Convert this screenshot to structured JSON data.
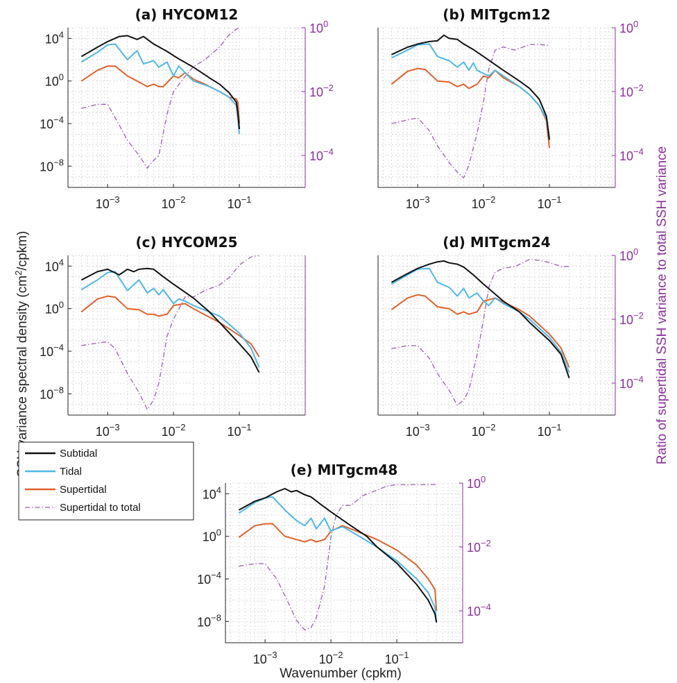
{
  "figure": {
    "ylabel": "SSH variance spectral density (cm",
    "ylabel_sup": "2",
    "ylabel_tail": "/cpkm)",
    "xlabel": "Wavenumber (cpkm)",
    "y2label": "Ratio of supertidal SSH variance to total SSH variance"
  },
  "legend": {
    "entries": [
      "Subtidal",
      "Tidal",
      "Supertidal",
      "Supertidal to total"
    ]
  },
  "colors": {
    "subtidal": "#111111",
    "tidal": "#4cb8e6",
    "supertidal": "#e0602a",
    "ratio": "#9a5bb0",
    "right_axis": "#8a2f9c"
  },
  "chart_data": [
    {
      "type": "line",
      "title": "(a) HYCOM12",
      "xscale": "log",
      "yscale": "log",
      "xlim": [
        0.00025,
        1
      ],
      "ylim": [
        1e-10,
        100000.0
      ],
      "y2lim": [
        1e-05,
        1
      ],
      "xticks": [
        "10^-3",
        "10^-2",
        "10^-1"
      ],
      "yticks": [
        "10^4",
        "10^0",
        "10^-4",
        "10^-8"
      ],
      "y2ticks": [
        "10^0",
        "10^-2",
        "10^-4"
      ],
      "series": [
        {
          "name": "Subtidal",
          "x": [
            0.0004,
            0.0007,
            0.001,
            0.0015,
            0.002,
            0.0028,
            0.0035,
            0.005,
            0.008,
            0.012,
            0.02,
            0.035,
            0.05,
            0.07,
            0.09,
            0.095,
            0.1
          ],
          "y": [
            200,
            1500,
            5000,
            15000,
            18000,
            8000,
            15000,
            3000,
            600,
            120,
            20,
            2,
            0.5,
            0.08,
            0.01,
            0.001,
            3e-05
          ]
        },
        {
          "name": "Tidal",
          "x": [
            0.0004,
            0.0007,
            0.001,
            0.0013,
            0.002,
            0.0028,
            0.0035,
            0.005,
            0.006,
            0.008,
            0.01,
            0.012,
            0.015,
            0.02,
            0.035,
            0.05,
            0.07,
            0.09,
            0.095,
            0.1
          ],
          "y": [
            60,
            500,
            2500,
            3000,
            100,
            700,
            40,
            80,
            20,
            60,
            3,
            25,
            6,
            1,
            0.3,
            0.1,
            0.03,
            0.005,
            0.0003,
            1e-05
          ]
        },
        {
          "name": "Supertidal",
          "x": [
            0.0004,
            0.0007,
            0.001,
            0.0013,
            0.002,
            0.003,
            0.004,
            0.005,
            0.006,
            0.007,
            0.01,
            0.012,
            0.015,
            0.02,
            0.03,
            0.05,
            0.07,
            0.09,
            0.095,
            0.1
          ],
          "y": [
            1,
            10,
            25,
            25,
            3,
            0.8,
            0.3,
            0.5,
            0.3,
            0.3,
            3,
            2,
            6,
            1.5,
            0.5,
            0.1,
            0.03,
            0.02,
            0.01,
            0.0001
          ]
        }
      ],
      "ratio": {
        "name": "Supertidal to total",
        "x": [
          0.0004,
          0.0007,
          0.001,
          0.0015,
          0.002,
          0.003,
          0.004,
          0.005,
          0.006,
          0.008,
          0.01,
          0.015,
          0.02,
          0.03,
          0.05,
          0.07,
          0.09,
          0.1
        ],
        "y": [
          0.003,
          0.004,
          0.004,
          0.0009,
          0.0003,
          0.0001,
          4e-05,
          7e-05,
          0.0001,
          0.002,
          0.01,
          0.03,
          0.06,
          0.1,
          0.25,
          0.6,
          0.9,
          1
        ]
      }
    },
    {
      "type": "line",
      "title": "(b) MITgcm12",
      "xscale": "log",
      "yscale": "log",
      "xlim": [
        0.00025,
        1
      ],
      "ylim": [
        1e-10,
        100000.0
      ],
      "y2lim": [
        1e-05,
        1
      ],
      "xticks": [
        "10^-3",
        "10^-2",
        "10^-1"
      ],
      "yticks": [],
      "y2ticks": [
        "10^0",
        "10^-2",
        "10^-4"
      ],
      "series": [
        {
          "name": "Subtidal",
          "x": [
            0.0004,
            0.0007,
            0.001,
            0.0015,
            0.002,
            0.0025,
            0.003,
            0.004,
            0.005,
            0.007,
            0.01,
            0.02,
            0.035,
            0.05,
            0.07,
            0.09,
            0.1
          ],
          "y": [
            300,
            1500,
            3000,
            5000,
            6000,
            20000,
            10000,
            8000,
            3000,
            900,
            200,
            10,
            1,
            0.2,
            0.02,
            0.0005,
            3e-06
          ]
        },
        {
          "name": "Tidal",
          "x": [
            0.0004,
            0.0007,
            0.001,
            0.0015,
            0.002,
            0.003,
            0.004,
            0.005,
            0.006,
            0.007,
            0.008,
            0.01,
            0.012,
            0.015,
            0.02,
            0.035,
            0.05,
            0.07,
            0.09,
            0.1
          ],
          "y": [
            150,
            800,
            2500,
            3000,
            200,
            80,
            20,
            60,
            10,
            50,
            10,
            5,
            3,
            10,
            3,
            0.3,
            0.05,
            0.005,
            0.0003,
            5e-06
          ]
        },
        {
          "name": "Supertidal",
          "x": [
            0.0004,
            0.0007,
            0.001,
            0.0013,
            0.002,
            0.003,
            0.004,
            0.005,
            0.006,
            0.008,
            0.01,
            0.012,
            0.015,
            0.02,
            0.035,
            0.05,
            0.07,
            0.09,
            0.1
          ],
          "y": [
            0.5,
            8,
            15,
            12,
            1,
            0.8,
            0.3,
            0.5,
            0.2,
            0.5,
            3,
            2,
            10,
            2,
            0.3,
            0.05,
            0.005,
            0.0002,
            5e-07
          ]
        }
      ],
      "ratio": {
        "name": "Supertidal to total",
        "x": [
          0.0004,
          0.0007,
          0.001,
          0.0015,
          0.002,
          0.003,
          0.004,
          0.005,
          0.006,
          0.008,
          0.01,
          0.012,
          0.015,
          0.02,
          0.03,
          0.05,
          0.07,
          0.1
        ],
        "y": [
          0.001,
          0.0013,
          0.0015,
          0.0006,
          0.0002,
          6e-05,
          3e-05,
          2e-05,
          5e-05,
          0.0005,
          0.005,
          0.05,
          0.2,
          0.25,
          0.2,
          0.3,
          0.3,
          0.28
        ]
      }
    },
    {
      "type": "line",
      "title": "(c) HYCOM25",
      "xscale": "log",
      "yscale": "log",
      "xlim": [
        0.00025,
        1
      ],
      "ylim": [
        1e-10,
        100000.0
      ],
      "y2lim": [
        1e-05,
        1
      ],
      "xticks": [
        "10^-3",
        "10^-2",
        "10^-1"
      ],
      "yticks": [
        "10^4",
        "10^0",
        "10^-4",
        "10^-8"
      ],
      "y2ticks": [],
      "series": [
        {
          "name": "Subtidal",
          "x": [
            0.0004,
            0.0007,
            0.001,
            0.0015,
            0.002,
            0.0025,
            0.003,
            0.004,
            0.005,
            0.007,
            0.01,
            0.02,
            0.035,
            0.05,
            0.1,
            0.15,
            0.2
          ],
          "y": [
            500,
            3000,
            5000,
            1500,
            5000,
            3000,
            5000,
            6000,
            5000,
            1000,
            200,
            10,
            0.5,
            0.05,
            0.0005,
            3e-05,
            1e-06
          ]
        },
        {
          "name": "Tidal",
          "x": [
            0.0004,
            0.0007,
            0.001,
            0.0013,
            0.002,
            0.003,
            0.004,
            0.005,
            0.006,
            0.007,
            0.01,
            0.012,
            0.015,
            0.02,
            0.05,
            0.1,
            0.15,
            0.2
          ],
          "y": [
            60,
            500,
            2500,
            3000,
            50,
            500,
            30,
            80,
            20,
            60,
            3,
            8,
            5,
            2,
            0.2,
            0.005,
            0.0002,
            3e-06
          ]
        },
        {
          "name": "Supertidal",
          "x": [
            0.0004,
            0.0007,
            0.001,
            0.0013,
            0.002,
            0.003,
            0.004,
            0.005,
            0.006,
            0.008,
            0.01,
            0.015,
            0.02,
            0.05,
            0.1,
            0.15,
            0.2
          ],
          "y": [
            0.5,
            8,
            15,
            12,
            1,
            0.8,
            0.3,
            0.3,
            0.2,
            0.3,
            2,
            3,
            1,
            0.05,
            0.003,
            0.0005,
            3e-05
          ]
        }
      ],
      "ratio": {
        "name": "Supertidal to total",
        "x": [
          0.0004,
          0.0007,
          0.001,
          0.0013,
          0.002,
          0.003,
          0.004,
          0.005,
          0.006,
          0.008,
          0.01,
          0.015,
          0.02,
          0.03,
          0.05,
          0.07,
          0.1,
          0.15,
          0.2
        ],
        "y": [
          0.0015,
          0.0018,
          0.002,
          0.0012,
          0.0002,
          5e-05,
          1.5e-05,
          3e-05,
          0.0001,
          0.003,
          0.01,
          0.05,
          0.05,
          0.08,
          0.12,
          0.2,
          0.5,
          0.9,
          1
        ]
      }
    },
    {
      "type": "line",
      "title": "(d) MITgcm24",
      "xscale": "log",
      "yscale": "log",
      "xlim": [
        0.00025,
        1
      ],
      "ylim": [
        1e-10,
        100000.0
      ],
      "y2lim": [
        1e-05,
        1
      ],
      "xticks": [
        "10^-3",
        "10^-2",
        "10^-1"
      ],
      "yticks": [],
      "y2ticks": [
        "10^0",
        "10^-2",
        "10^-4"
      ],
      "series": [
        {
          "name": "Subtidal",
          "x": [
            0.0004,
            0.0007,
            0.001,
            0.0015,
            0.002,
            0.0025,
            0.003,
            0.004,
            0.005,
            0.007,
            0.01,
            0.02,
            0.035,
            0.05,
            0.1,
            0.15,
            0.2
          ],
          "y": [
            300,
            2000,
            6000,
            15000,
            25000,
            30000,
            20000,
            15000,
            8000,
            1500,
            200,
            5,
            0.5,
            0.05,
            0.001,
            5e-05,
            3e-07
          ]
        },
        {
          "name": "Tidal",
          "x": [
            0.0004,
            0.0007,
            0.001,
            0.0015,
            0.002,
            0.003,
            0.004,
            0.005,
            0.006,
            0.008,
            0.01,
            0.012,
            0.015,
            0.02,
            0.035,
            0.05,
            0.1,
            0.15,
            0.2
          ],
          "y": [
            200,
            1500,
            5000,
            6000,
            300,
            100,
            15,
            80,
            10,
            30,
            5,
            2,
            10,
            3,
            0.5,
            0.1,
            0.002,
            8e-05,
            1e-06
          ]
        },
        {
          "name": "Supertidal",
          "x": [
            0.0004,
            0.0007,
            0.001,
            0.0013,
            0.002,
            0.003,
            0.004,
            0.005,
            0.006,
            0.008,
            0.01,
            0.015,
            0.02,
            0.035,
            0.05,
            0.1,
            0.15,
            0.2
          ],
          "y": [
            0.8,
            10,
            20,
            15,
            1.5,
            1,
            0.3,
            0.5,
            0.3,
            0.5,
            5,
            10,
            4,
            0.8,
            0.2,
            0.004,
            0.0002,
            3e-06
          ]
        }
      ],
      "ratio": {
        "name": "Supertidal to total",
        "x": [
          0.0004,
          0.0007,
          0.001,
          0.0015,
          0.002,
          0.003,
          0.004,
          0.005,
          0.006,
          0.008,
          0.01,
          0.012,
          0.015,
          0.02,
          0.03,
          0.05,
          0.07,
          0.1,
          0.15,
          0.2
        ],
        "y": [
          0.0012,
          0.0015,
          0.0015,
          0.0006,
          0.0002,
          6e-05,
          2e-05,
          3e-05,
          6e-05,
          0.0008,
          0.01,
          0.1,
          0.3,
          0.4,
          0.45,
          0.75,
          0.7,
          0.6,
          0.45,
          0.45
        ]
      }
    },
    {
      "type": "line",
      "title": "(e) MITgcm48",
      "xscale": "log",
      "yscale": "log",
      "xlim": [
        0.00025,
        1
      ],
      "ylim": [
        1e-10,
        100000.0
      ],
      "y2lim": [
        1e-05,
        1
      ],
      "xticks": [
        "10^-3",
        "10^-2",
        "10^-1"
      ],
      "yticks": [
        "10^4",
        "10^0",
        "10^-4",
        "10^-8"
      ],
      "y2ticks": [
        "10^0",
        "10^-2",
        "10^-4"
      ],
      "series": [
        {
          "name": "Subtidal",
          "x": [
            0.0004,
            0.0007,
            0.001,
            0.0015,
            0.002,
            0.0025,
            0.003,
            0.004,
            0.005,
            0.007,
            0.01,
            0.02,
            0.035,
            0.05,
            0.1,
            0.2,
            0.3,
            0.38,
            0.4
          ],
          "y": [
            300,
            2000,
            4000,
            15000,
            30000,
            15000,
            20000,
            8000,
            5000,
            1000,
            200,
            10,
            1,
            0.1,
            0.003,
            3e-05,
            1e-06,
            5e-08,
            8e-09
          ]
        },
        {
          "name": "Tidal",
          "x": [
            0.0004,
            0.0007,
            0.001,
            0.0013,
            0.002,
            0.003,
            0.004,
            0.005,
            0.006,
            0.008,
            0.01,
            0.012,
            0.015,
            0.02,
            0.05,
            0.1,
            0.2,
            0.3,
            0.38,
            0.4
          ],
          "y": [
            150,
            1500,
            4000,
            5000,
            300,
            30,
            10,
            50,
            5,
            50,
            3,
            5,
            8,
            3,
            0.1,
            0.005,
            0.0001,
            5e-06,
            2e-07,
            1e-08
          ]
        },
        {
          "name": "Supertidal",
          "x": [
            0.0004,
            0.0007,
            0.001,
            0.0013,
            0.002,
            0.003,
            0.004,
            0.005,
            0.006,
            0.008,
            0.01,
            0.015,
            0.02,
            0.05,
            0.1,
            0.2,
            0.3,
            0.38,
            0.4
          ],
          "y": [
            0.8,
            10,
            15,
            15,
            1,
            0.5,
            0.3,
            0.5,
            0.3,
            0.5,
            3,
            10,
            5,
            0.5,
            0.05,
            0.002,
            0.0001,
            1e-05,
            1e-07
          ]
        }
      ],
      "ratio": {
        "name": "Supertidal to total",
        "x": [
          0.0004,
          0.0007,
          0.001,
          0.0015,
          0.002,
          0.003,
          0.004,
          0.005,
          0.006,
          0.008,
          0.01,
          0.012,
          0.015,
          0.02,
          0.03,
          0.05,
          0.07,
          0.1,
          0.2,
          0.4
        ],
        "y": [
          0.0025,
          0.003,
          0.003,
          0.001,
          0.0003,
          5e-05,
          2.5e-05,
          3e-05,
          6e-05,
          0.0006,
          0.02,
          0.1,
          0.2,
          0.2,
          0.4,
          0.6,
          0.8,
          0.9,
          0.9,
          0.9
        ]
      }
    }
  ]
}
